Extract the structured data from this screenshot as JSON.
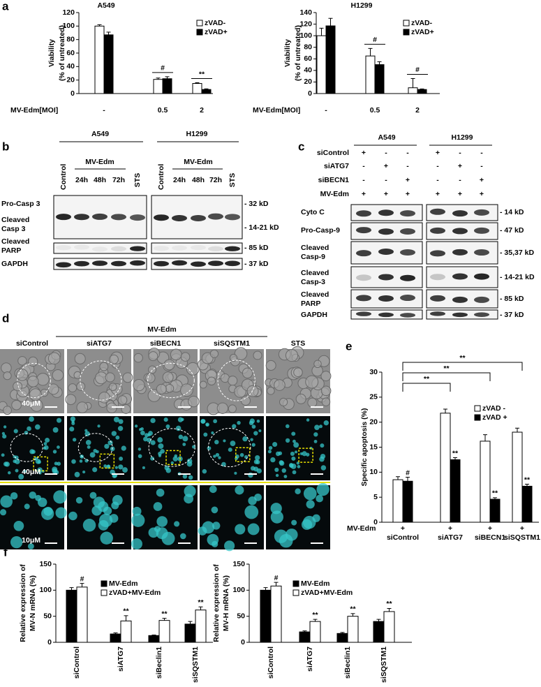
{
  "panel_labels": [
    "a",
    "b",
    "c",
    "d",
    "e",
    "f"
  ],
  "chart_data": [
    {
      "type": "bar",
      "title": "A549",
      "y_label": [
        "Viability",
        "(% of untreated)"
      ],
      "x_label": "MV-Edm[MOI]",
      "categories": [
        "-",
        "0.5",
        "2"
      ],
      "series": [
        {
          "name": "zVAD-",
          "color": "#ffffff",
          "values": [
            100,
            21,
            15
          ],
          "errors": [
            2,
            2,
            1
          ]
        },
        {
          "name": "zVAD+",
          "color": "#000000",
          "values": [
            87,
            22,
            6
          ],
          "errors": [
            4,
            3,
            1
          ]
        }
      ],
      "group_labels": [
        null,
        "#",
        "**"
      ],
      "ylim": [
        0,
        120
      ],
      "yticks": [
        0,
        20,
        40,
        60,
        80,
        100,
        120
      ]
    },
    {
      "type": "bar",
      "title": "H1299",
      "y_label": [
        "Viability",
        "(% of untreated)"
      ],
      "x_label": "MV-Edm[MOI]",
      "categories": [
        "-",
        "0.5",
        "2"
      ],
      "series": [
        {
          "name": "zVAD-",
          "color": "#ffffff",
          "values": [
            100,
            65,
            10
          ],
          "errors": [
            13,
            13,
            16
          ]
        },
        {
          "name": "zVAD+",
          "color": "#000000",
          "values": [
            117,
            50,
            7
          ],
          "errors": [
            13,
            5,
            1
          ]
        }
      ],
      "group_labels": [
        null,
        "#",
        "#"
      ],
      "ylim": [
        0,
        140
      ],
      "yticks": [
        0,
        20,
        40,
        60,
        80,
        100,
        120,
        140
      ]
    },
    {
      "type": "bar",
      "y_label": [
        "Specific apoptosis (%)"
      ],
      "x_row_label": "MV-Edm",
      "x_row_values": [
        "+",
        "+",
        "+",
        "+"
      ],
      "categories": [
        "siControl",
        "siATG7",
        "siBECN1",
        "siSQSTM1"
      ],
      "series": [
        {
          "name": "zVAD -",
          "color": "#ffffff",
          "values": [
            8.5,
            21.8,
            16.2,
            18
          ],
          "errors": [
            0.6,
            0.8,
            1.3,
            0.8
          ]
        },
        {
          "name": "zVAD +",
          "color": "#000000",
          "values": [
            8.2,
            12.5,
            4.6,
            7.2
          ],
          "errors": [
            0.8,
            0.4,
            0.3,
            0.4
          ],
          "labels": [
            "#",
            "**",
            "**",
            "**"
          ]
        }
      ],
      "bracket_labels": [
        "**",
        "**",
        "**"
      ],
      "ylim": [
        0,
        30
      ],
      "yticks": [
        0,
        5,
        10,
        15,
        20,
        25,
        30
      ]
    },
    {
      "type": "bar",
      "y_label": [
        "Relative expression of",
        "MV-N mRNA (%)"
      ],
      "categories": [
        "siControl",
        "siATG7",
        "siBeclin1",
        "siSQSTM1"
      ],
      "series": [
        {
          "name": "MV-Edm",
          "color": "#000000",
          "values": [
            100,
            16,
            13,
            35
          ],
          "errors": [
            5,
            2,
            1,
            5
          ]
        },
        {
          "name": "zVAD+MV-Edm",
          "color": "#ffffff",
          "values": [
            106,
            41,
            42,
            62
          ],
          "errors": [
            7,
            10,
            4,
            6
          ],
          "labels": [
            "#",
            "**",
            "**",
            "**"
          ]
        }
      ],
      "ylim": [
        0,
        150
      ],
      "yticks": [
        0,
        50,
        100,
        150
      ]
    },
    {
      "type": "bar",
      "y_label": [
        "Relative expression of",
        "MV-H mRNA (%)"
      ],
      "categories": [
        "siControl",
        "siATG7",
        "siBeclin1",
        "siSQSTM1"
      ],
      "series": [
        {
          "name": "MV-Edm",
          "color": "#000000",
          "values": [
            100,
            20,
            17,
            40
          ],
          "errors": [
            5,
            2,
            2,
            4
          ]
        },
        {
          "name": "zVAD+MV-Edm",
          "color": "#ffffff",
          "values": [
            108,
            40,
            50,
            59
          ],
          "errors": [
            7,
            4,
            5,
            6
          ],
          "labels": [
            "#",
            "**",
            "**",
            "**"
          ]
        }
      ],
      "ylim": [
        0,
        150
      ],
      "yticks": [
        0,
        50,
        100,
        150
      ]
    }
  ],
  "blot_b": {
    "cell_lines": [
      "A549",
      "H1299"
    ],
    "lanes": [
      "Control",
      "MV-Edm",
      "STS"
    ],
    "time_points": [
      "24h",
      "48h",
      "72h"
    ],
    "rows": [
      [
        "Pro-Casp 3"
      ],
      [
        "Cleaved",
        "Casp 3"
      ],
      [
        "Cleaved",
        "PARP"
      ],
      [
        "GAPDH"
      ]
    ],
    "sizes": [
      "- 32 kD",
      "- 14-21 kD",
      "- 85 kD",
      "- 37 kD"
    ]
  },
  "blot_c": {
    "cell_lines": [
      "A549",
      "H1299"
    ],
    "conditions": [
      {
        "label": "siControl",
        "marks": [
          "+",
          "-",
          "-"
        ]
      },
      {
        "label": "siATG7",
        "marks": [
          "-",
          "+",
          "-"
        ]
      },
      {
        "label": "siBECN1",
        "marks": [
          "-",
          "-",
          "+"
        ]
      },
      {
        "label": "MV-Edm",
        "marks": [
          "+",
          "+",
          "+"
        ]
      }
    ],
    "rows": [
      [
        "Cyto C"
      ],
      [
        "Pro-Casp-9"
      ],
      [
        "Cleaved",
        "Casp-9"
      ],
      [
        "Cleaved",
        "Casp-3"
      ],
      [
        "Cleaved",
        "PARP"
      ],
      [
        "GAPDH"
      ]
    ],
    "sizes": [
      "- 14 kD",
      "- 47 kD",
      "- 35,37 kD",
      "- 14-21 kD",
      "- 85 kD",
      "- 37 kD"
    ]
  },
  "microscopy_d": {
    "header": "MV-Edm",
    "columns": [
      "siControl",
      "siATG7",
      "siBECN1",
      "siSQSTM1",
      "STS"
    ],
    "scale_bars": [
      "40μM",
      "40μM",
      "10μM"
    ]
  }
}
